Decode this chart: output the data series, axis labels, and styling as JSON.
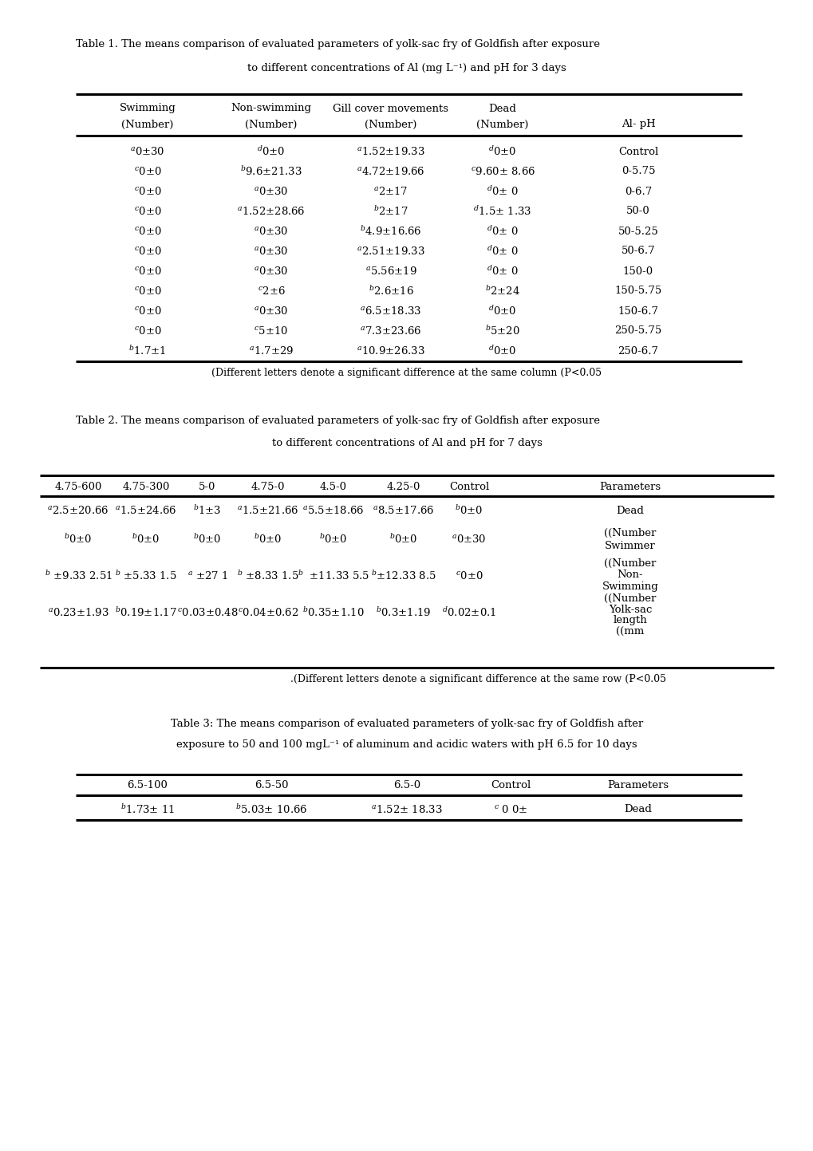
{
  "title1_line1": "Table 1. The means comparison of evaluated parameters of yolk-sac fry of Goldfish after exposure",
  "title1_line2": "to different concentrations of Al (mg L⁻¹) and pH for 3 days",
  "title2_line1": "Table 2. The means comparison of evaluated parameters of yolk-sac fry of Goldfish after exposure",
  "title2_line2": "to different concentrations of Al and pH for 7 days",
  "title3_line1": "Table 3: The means comparison of evaluated parameters of yolk-sac fry of Goldfish after",
  "title3_line2": "exposure to 50 and 100 mgL⁻¹ of aluminum and acidic waters with pH 6.5 for 10 days",
  "table1_col_centers": [
    185,
    340,
    490,
    630,
    800
  ],
  "table1_data": [
    [
      "$^a$0±30",
      "$^d$0±0",
      "$^a$1.52±19.33",
      "$^d$0±0",
      "Control"
    ],
    [
      "$^c$0±0",
      "$^b$9.6±21.33",
      "$^a$4.72±19.66",
      "$^c$9.60± 8.66",
      "0-5.75"
    ],
    [
      "$^c$0±0",
      "$^a$0±30",
      "$^a$2±17",
      "$^d$0± 0",
      "0-6.7"
    ],
    [
      "$^c$0±0",
      "$^a$1.52±28.66",
      "$^b$2±17",
      "$^d$1.5± 1.33",
      "50-0"
    ],
    [
      "$^c$0±0",
      "$^a$0±30",
      "$^b$4.9±16.66",
      "$^d$0± 0",
      "50-5.25"
    ],
    [
      "$^c$0±0",
      "$^a$0±30",
      "$^a$2.51±19.33",
      "$^d$0± 0",
      "50-6.7"
    ],
    [
      "$^c$0±0",
      "$^a$0±30",
      "$^a$5.56±19",
      "$^d$0± 0",
      "150-0"
    ],
    [
      "$^c$0±0",
      "$^c$2±6",
      "$^b$2.6±16",
      "$^b$2±24",
      "150-5.75"
    ],
    [
      "$^c$0±0",
      "$^a$0±30",
      "$^a$6.5±18.33",
      "$^d$0±0",
      "150-6.7"
    ],
    [
      "$^c$0±0",
      "$^c$5±10",
      "$^a$7.3±23.66",
      "$^b$5±20",
      "250-5.75"
    ],
    [
      "$^b$1.7±1",
      "$^a$1.7±29",
      "$^a$10.9±26.33",
      "$^d$0±0",
      "250-6.7"
    ]
  ],
  "table1_footnote": "(Different letters denote a significant difference at the same column (P<0.05",
  "table2_col_centers": [
    98,
    183,
    260,
    336,
    418,
    506,
    588,
    790
  ],
  "table2_headers": [
    "4.75-600",
    "4.75-300",
    "5-0",
    "4.75-0",
    "4.5-0",
    "4.25-0",
    "Control",
    "Parameters"
  ],
  "table2_data_row0": [
    "$^a$2.5±20.66",
    "$^a$1.5±24.66",
    "$^b$1±3",
    "$^a$1.5±21.66",
    "$^a$5.5±18.66",
    "$^a$8.5±17.66",
    "$^b$0±0",
    "Dead"
  ],
  "table2_data_row1": [
    "$^b$0±0",
    "$^b$0±0",
    "$^b$0±0",
    "$^b$0±0",
    "$^b$0±0",
    "$^b$0±0",
    "$^a$0±30"
  ],
  "table2_data_row1_param": [
    "((Number",
    "Swimmer"
  ],
  "table2_data_row2": [
    "$^b$ ±9.33 2.51",
    "$^b$ ±5.33 1.5",
    "$^a$ ±27 1",
    "$^b$ ±8.33 1.5",
    "$^b$  ±11.33 5.5",
    "$^b$±12.33 8.5",
    "$^c$0±0"
  ],
  "table2_data_row2_param": [
    "((Number",
    "Non-",
    "Swimming"
  ],
  "table2_data_row3": [
    "$^a$0.23±1.93",
    "$^b$0.19±1.17",
    "$^c$0.03±0.48",
    "$^c$0.04±0.62",
    "$^b$0.35±1.10",
    "$^b$0.3±1.19",
    "$^d$0.02±0.1"
  ],
  "table2_data_row3_param": [
    "((Number",
    "Yolk-sac",
    "length",
    "((mm"
  ],
  "table2_footnote": ".(Different letters denote a significant difference at the same row (P<0.05",
  "table3_col_centers": [
    185,
    340,
    510,
    640,
    800
  ],
  "table3_headers": [
    "6.5-100",
    "6.5-50",
    "6.5-0",
    "Control",
    "Parameters"
  ],
  "table3_data": [
    [
      "$^b$1.73± 11",
      "$^b$5.03± 10.66",
      "$^a$1.52± 18.33",
      "$^c$ 0 0±",
      "Dead"
    ]
  ],
  "fs": 9.5,
  "tfs": 9.5
}
